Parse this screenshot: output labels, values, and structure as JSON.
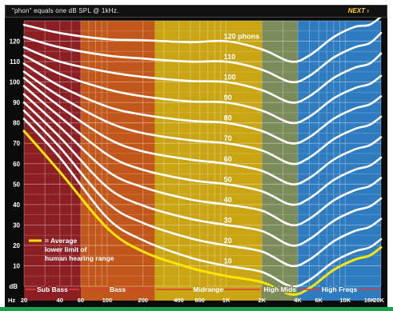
{
  "header": {
    "caption": "\"phon\" equals one dB SPL @ 1kHz.",
    "next_label": "NEXT ›"
  },
  "chart_data": {
    "type": "line",
    "xlabel": "Hz",
    "ylabel": "dB",
    "x_scale": "log",
    "xlim": [
      20,
      20000
    ],
    "ylim": [
      0,
      130
    ],
    "grid": true,
    "x_ticks": [
      {
        "label": "20",
        "value": 20
      },
      {
        "label": "40",
        "value": 40
      },
      {
        "label": "60",
        "value": 60
      },
      {
        "label": "100",
        "value": 100
      },
      {
        "label": "200",
        "value": 200
      },
      {
        "label": "400",
        "value": 400
      },
      {
        "label": "600",
        "value": 600
      },
      {
        "label": "1K",
        "value": 1000
      },
      {
        "label": "2K",
        "value": 2000
      },
      {
        "label": "4K",
        "value": 4000
      },
      {
        "label": "6K",
        "value": 6000
      },
      {
        "label": "10K",
        "value": 10000
      },
      {
        "label": "16K",
        "value": 16000
      },
      {
        "label": "20K",
        "value": 20000
      }
    ],
    "y_ticks": [
      "10",
      "20",
      "30",
      "40",
      "50",
      "60",
      "70",
      "80",
      "90",
      "100",
      "110",
      "120"
    ],
    "bands": [
      {
        "label": "Sub Bass",
        "from": 20,
        "to": 60,
        "color": "#8b1f24"
      },
      {
        "label": "Bass",
        "from": 60,
        "to": 250,
        "color": "#c2571b"
      },
      {
        "label": "Midrange",
        "from": 250,
        "to": 2000,
        "color": "#c9a514"
      },
      {
        "label": "High Mids",
        "from": 2000,
        "to": 4000,
        "color": "#7c8b5a"
      },
      {
        "label": "High Freqs",
        "from": 4000,
        "to": 20000,
        "color": "#2e7bbf"
      }
    ],
    "x": [
      20,
      40,
      100,
      200,
      500,
      1000,
      2000,
      3500,
      5000,
      8000,
      12000,
      16000,
      20000
    ],
    "series": [
      {
        "name": "120 phons",
        "phon": 120,
        "values": [
          128,
          124,
          121,
          120.5,
          119.5,
          120,
          116,
          110,
          113,
          122,
          127,
          128,
          132
        ]
      },
      {
        "name": "110",
        "phon": 110,
        "values": [
          122,
          117,
          113,
          111.5,
          110,
          110,
          106,
          100,
          103,
          112,
          117,
          119,
          124
        ]
      },
      {
        "name": "100",
        "phon": 100,
        "values": [
          117,
          110,
          105,
          102.5,
          100.5,
          100,
          96,
          90,
          93,
          102,
          107,
          109,
          114
        ]
      },
      {
        "name": "90",
        "phon": 90,
        "values": [
          113,
          104,
          96.5,
          93,
          90.5,
          90,
          86,
          80,
          83,
          92,
          97,
          99,
          103
        ]
      },
      {
        "name": "80",
        "phon": 80,
        "values": [
          109,
          98,
          88,
          84,
          81,
          80,
          76,
          70,
          73,
          82,
          87,
          89,
          93
        ]
      },
      {
        "name": "70",
        "phon": 70,
        "values": [
          105,
          93,
          80.5,
          75,
          71.5,
          70,
          66.5,
          60,
          63,
          72,
          77,
          79,
          83
        ]
      },
      {
        "name": "60",
        "phon": 60,
        "values": [
          102,
          88,
          72.5,
          66,
          62,
          60,
          56.5,
          50,
          53,
          62,
          67,
          69,
          73
        ]
      },
      {
        "name": "50",
        "phon": 50,
        "values": [
          98,
          83,
          64.5,
          57,
          52,
          50,
          46.5,
          40,
          43,
          52,
          57,
          59,
          63
        ]
      },
      {
        "name": "40",
        "phon": 40,
        "values": [
          94,
          78,
          56.5,
          48.5,
          42.5,
          40,
          37,
          30,
          33,
          42,
          47,
          49,
          53
        ]
      },
      {
        "name": "30",
        "phon": 30,
        "values": [
          90,
          73,
          48.5,
          39.5,
          33,
          30,
          27,
          20,
          23,
          32,
          37,
          39,
          43
        ]
      },
      {
        "name": "20",
        "phon": 20,
        "values": [
          86,
          68,
          41,
          31,
          23.5,
          20,
          17,
          10,
          13,
          22,
          27,
          29,
          33
        ]
      },
      {
        "name": "10",
        "phon": 10,
        "values": [
          82,
          63,
          33.5,
          22.5,
          14,
          10,
          7,
          0,
          3,
          12,
          17,
          19,
          23
        ]
      }
    ],
    "threshold": {
      "legend": [
        "= Average",
        "lower limit of",
        "human hearing range"
      ],
      "color": "#ffe600",
      "values": [
        76,
        56,
        28.5,
        17,
        9,
        5,
        2,
        -4,
        -1,
        8,
        13,
        15,
        19
      ]
    }
  }
}
